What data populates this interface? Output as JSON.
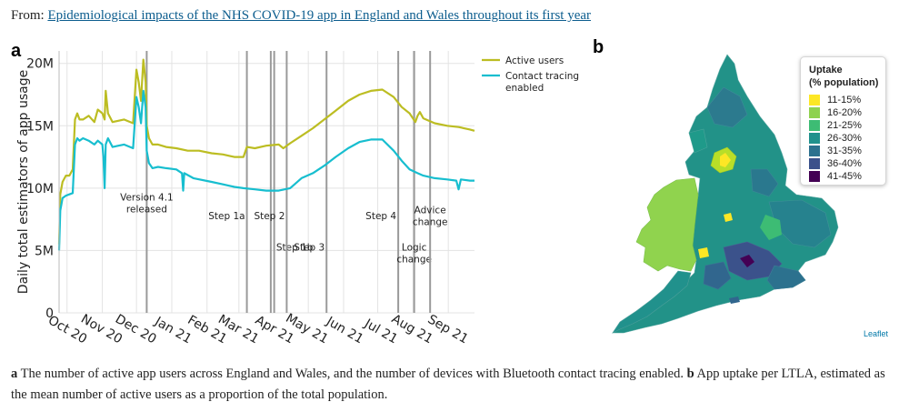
{
  "source": {
    "prefix": "From: ",
    "link_text": "Epidemiological impacts of the NHS COVID-19 app in England and Wales throughout its first year"
  },
  "panel_a": {
    "label": "a"
  },
  "panel_b": {
    "label": "b"
  },
  "chart_data": {
    "type": "line",
    "ylabel": "Daily total estimators of app usage",
    "ylim": [
      0,
      21000000
    ],
    "yticks": [
      0,
      5000000,
      10000000,
      15000000,
      20000000
    ],
    "ytick_labels": [
      "0",
      "5M",
      "10M",
      "15M",
      "20M"
    ],
    "xlim": [
      "2020-09-24",
      "2021-09-24"
    ],
    "xticks": [
      "2020-10-01",
      "2020-11-01",
      "2020-12-01",
      "2021-01-01",
      "2021-02-01",
      "2021-03-01",
      "2021-04-01",
      "2021-05-01",
      "2021-06-01",
      "2021-07-01",
      "2021-08-01",
      "2021-09-01"
    ],
    "xtick_labels": [
      "Oct 20",
      "Nov 20",
      "Dec 20",
      "Jan 21",
      "Feb 21",
      "Mar 21",
      "Apr 21",
      "May 21",
      "Jun 21",
      "Jul 21",
      "Aug 21",
      "Sep 21"
    ],
    "grid": true,
    "legend_position": "top-right outside",
    "series": [
      {
        "name": "Active users",
        "color": "#bcbd22",
        "x": [
          "2020-09-24",
          "2020-09-25",
          "2020-09-27",
          "2020-09-30",
          "2020-10-03",
          "2020-10-06",
          "2020-10-08",
          "2020-10-10",
          "2020-10-12",
          "2020-10-15",
          "2020-10-20",
          "2020-10-25",
          "2020-10-28",
          "2020-11-01",
          "2020-11-03",
          "2020-11-04",
          "2020-11-06",
          "2020-11-10",
          "2020-11-20",
          "2020-11-28",
          "2020-12-01",
          "2020-12-03",
          "2020-12-05",
          "2020-12-07",
          "2020-12-09",
          "2020-12-10",
          "2020-12-12",
          "2020-12-15",
          "2020-12-20",
          "2020-12-27",
          "2021-01-05",
          "2021-01-15",
          "2021-01-25",
          "2021-02-05",
          "2021-02-15",
          "2021-02-25",
          "2021-03-05",
          "2021-03-08",
          "2021-03-15",
          "2021-03-25",
          "2021-04-05",
          "2021-04-09",
          "2021-04-15",
          "2021-04-25",
          "2021-05-05",
          "2021-05-15",
          "2021-05-25",
          "2021-06-05",
          "2021-06-15",
          "2021-06-25",
          "2021-07-05",
          "2021-07-15",
          "2021-07-22",
          "2021-07-29",
          "2021-08-03",
          "2021-08-05",
          "2021-08-07",
          "2021-08-10",
          "2021-08-20",
          "2021-08-31",
          "2021-09-10",
          "2021-09-20",
          "2021-09-24"
        ],
        "y": [
          5500000,
          9500000,
          10500000,
          11000000,
          11000000,
          11500000,
          15500000,
          16000000,
          15500000,
          15500000,
          15800000,
          15300000,
          16300000,
          16000000,
          15500000,
          17800000,
          16000000,
          15300000,
          15500000,
          15200000,
          19500000,
          18500000,
          17000000,
          20300000,
          18500000,
          15000000,
          14000000,
          13500000,
          13500000,
          13300000,
          13200000,
          13000000,
          13000000,
          12800000,
          12700000,
          12500000,
          12500000,
          13300000,
          13200000,
          13400000,
          13500000,
          13200000,
          13600000,
          14200000,
          14800000,
          15500000,
          16200000,
          17000000,
          17500000,
          17800000,
          17900000,
          17300000,
          16500000,
          16000000,
          15300000,
          15800000,
          16100000,
          15600000,
          15200000,
          15000000,
          14900000,
          14700000,
          14600000
        ]
      },
      {
        "name": "Contact tracing enabled",
        "color": "#17becf",
        "x": [
          "2020-09-24",
          "2020-09-25",
          "2020-09-27",
          "2020-09-30",
          "2020-10-03",
          "2020-10-06",
          "2020-10-08",
          "2020-10-10",
          "2020-10-12",
          "2020-10-15",
          "2020-10-20",
          "2020-10-25",
          "2020-10-28",
          "2020-11-01",
          "2020-11-02",
          "2020-11-03",
          "2020-11-04",
          "2020-11-06",
          "2020-11-10",
          "2020-11-20",
          "2020-11-28",
          "2020-12-01",
          "2020-12-03",
          "2020-12-05",
          "2020-12-07",
          "2020-12-09",
          "2020-12-10",
          "2020-12-12",
          "2020-12-15",
          "2020-12-20",
          "2020-12-27",
          "2021-01-05",
          "2021-01-10",
          "2021-01-11",
          "2021-01-12",
          "2021-01-20",
          "2021-02-05",
          "2021-02-15",
          "2021-02-25",
          "2021-03-05",
          "2021-03-15",
          "2021-03-25",
          "2021-04-05",
          "2021-04-15",
          "2021-04-25",
          "2021-05-05",
          "2021-05-15",
          "2021-05-25",
          "2021-06-05",
          "2021-06-15",
          "2021-06-25",
          "2021-07-05",
          "2021-07-15",
          "2021-07-22",
          "2021-07-29",
          "2021-08-05",
          "2021-08-10",
          "2021-08-20",
          "2021-08-31",
          "2021-09-08",
          "2021-09-10",
          "2021-09-12",
          "2021-09-20",
          "2021-09-24"
        ],
        "y": [
          5000000,
          8200000,
          9200000,
          9400000,
          9500000,
          9600000,
          13500000,
          14000000,
          13800000,
          14000000,
          13800000,
          13500000,
          13800000,
          13500000,
          12500000,
          10000000,
          13500000,
          14000000,
          13300000,
          13500000,
          13200000,
          17300000,
          16500000,
          15200000,
          17800000,
          16500000,
          13000000,
          12000000,
          11600000,
          11700000,
          11600000,
          11500000,
          11200000,
          9800000,
          11200000,
          10800000,
          10500000,
          10300000,
          10100000,
          10000000,
          9900000,
          9800000,
          9800000,
          10000000,
          10800000,
          11200000,
          11800000,
          12500000,
          13200000,
          13700000,
          13900000,
          13900000,
          13000000,
          12200000,
          11500000,
          11200000,
          11000000,
          10800000,
          10700000,
          10600000,
          9900000,
          10700000,
          10600000,
          10600000
        ]
      }
    ],
    "events": [
      {
        "date": "2020-12-10",
        "label": "Version 4.1\nreleased",
        "label_y": 9000000,
        "anchor": "middle"
      },
      {
        "date": "2021-03-08",
        "label": "Step 1a",
        "label_y": 7500000,
        "anchor": "end"
      },
      {
        "date": "2021-03-29",
        "label": "Step 1b",
        "label_y": 5000000,
        "anchor": "start"
      },
      {
        "date": "2021-04-01",
        "label": "",
        "label_y": 0,
        "anchor": "start"
      },
      {
        "date": "2021-04-12",
        "label": "Step 2",
        "label_y": 7500000,
        "anchor": "end"
      },
      {
        "date": "2021-05-17",
        "label": "Step 3",
        "label_y": 5000000,
        "anchor": "end"
      },
      {
        "date": "2021-07-19",
        "label": "Step 4",
        "label_y": 7500000,
        "anchor": "end"
      },
      {
        "date": "2021-08-02",
        "label": "Logic\nchange",
        "label_y": 5000000,
        "anchor": "middle"
      },
      {
        "date": "2021-08-16",
        "label": "Advice\nchange",
        "label_y": 8000000,
        "anchor": "middle"
      }
    ]
  },
  "map_legend": {
    "title_line1": "Uptake",
    "title_line2": "(% population)",
    "items": [
      {
        "label": "11-15%",
        "color": "#fde725"
      },
      {
        "label": "16-20%",
        "color": "#8fd24f"
      },
      {
        "label": "21-25%",
        "color": "#3dbc74"
      },
      {
        "label": "26-30%",
        "color": "#20918c"
      },
      {
        "label": "31-35%",
        "color": "#2c718e"
      },
      {
        "label": "36-40%",
        "color": "#3b518b"
      },
      {
        "label": "41-45%",
        "color": "#440154"
      }
    ]
  },
  "map_credit": "Leaflet",
  "caption": {
    "a_label": "a",
    "a_text": " The number of active app users across England and Wales, and the number of devices with Bluetooth contact tracing enabled. ",
    "b_label": "b",
    "b_text": " App uptake per LTLA, estimated as the mean number of active users as a proportion of the total population."
  }
}
